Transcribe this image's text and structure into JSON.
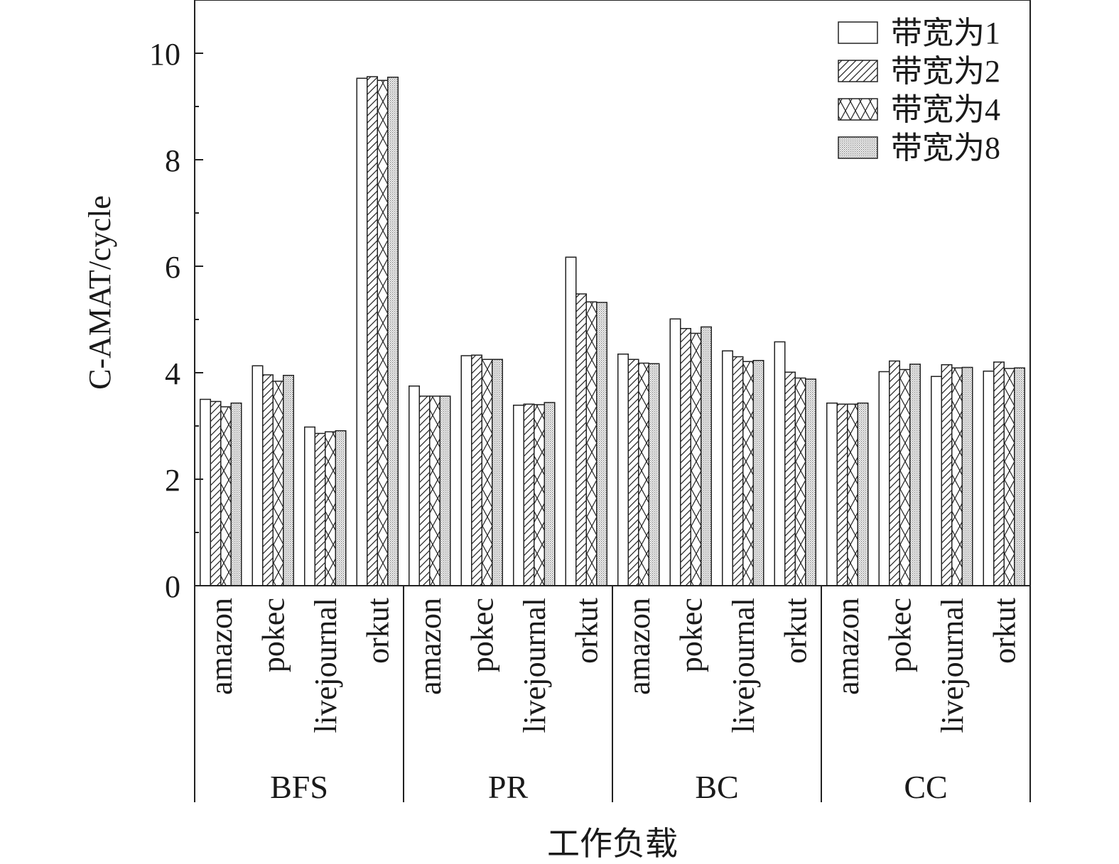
{
  "chart_data": {
    "type": "bar",
    "ylabel": "C-AMAT/cycle",
    "xlabel": "工作负载",
    "ylim": [
      0,
      11
    ],
    "yticks": [
      "0",
      "2",
      "4",
      "6",
      "8",
      "10"
    ],
    "grid": false,
    "legend_position": "top-right",
    "groups": [
      {
        "name": "BFS",
        "categories": [
          "amazon",
          "pokec",
          "livejournal",
          "orkut"
        ]
      },
      {
        "name": "PR",
        "categories": [
          "amazon",
          "pokec",
          "livejournal",
          "orkut"
        ]
      },
      {
        "name": "BC",
        "categories": [
          "amazon",
          "pokec",
          "livejournal",
          "orkut"
        ]
      },
      {
        "name": "CC",
        "categories": [
          "amazon",
          "pokec",
          "livejournal",
          "orkut"
        ]
      }
    ],
    "series": [
      {
        "name": "带宽为1",
        "pattern": "empty",
        "values": [
          3.5,
          4.13,
          2.98,
          9.53,
          3.75,
          4.32,
          3.39,
          6.17,
          4.35,
          5.01,
          4.41,
          4.58,
          3.43,
          4.02,
          3.93,
          4.03
        ]
      },
      {
        "name": "带宽为2",
        "pattern": "diagonal",
        "values": [
          3.46,
          3.96,
          2.86,
          9.56,
          3.56,
          4.33,
          3.41,
          5.48,
          4.25,
          4.83,
          4.3,
          4.01,
          3.41,
          4.22,
          4.15,
          4.2
        ]
      },
      {
        "name": "带宽为4",
        "pattern": "crosshatch",
        "values": [
          3.36,
          3.84,
          2.89,
          9.49,
          3.56,
          4.25,
          3.4,
          5.33,
          4.18,
          4.74,
          4.21,
          3.9,
          3.41,
          4.06,
          4.09,
          4.08
        ]
      },
      {
        "name": "带宽为8",
        "pattern": "dotted",
        "values": [
          3.43,
          3.95,
          2.91,
          9.55,
          3.56,
          4.25,
          3.44,
          5.32,
          4.17,
          4.86,
          4.23,
          3.88,
          3.43,
          4.16,
          4.1,
          4.09
        ]
      }
    ]
  }
}
